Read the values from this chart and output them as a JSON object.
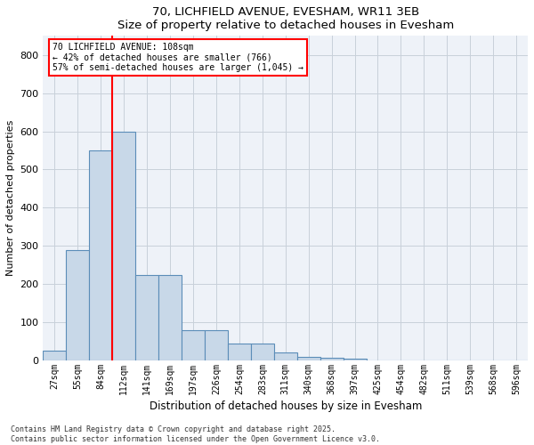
{
  "title": "70, LICHFIELD AVENUE, EVESHAM, WR11 3EB",
  "subtitle": "Size of property relative to detached houses in Evesham",
  "xlabel": "Distribution of detached houses by size in Evesham",
  "ylabel": "Number of detached properties",
  "categories": [
    "27sqm",
    "55sqm",
    "84sqm",
    "112sqm",
    "141sqm",
    "169sqm",
    "197sqm",
    "226sqm",
    "254sqm",
    "283sqm",
    "311sqm",
    "340sqm",
    "368sqm",
    "397sqm",
    "425sqm",
    "454sqm",
    "482sqm",
    "511sqm",
    "539sqm",
    "568sqm",
    "596sqm"
  ],
  "values": [
    25,
    290,
    550,
    600,
    225,
    225,
    80,
    80,
    45,
    45,
    22,
    10,
    7,
    4,
    0,
    0,
    0,
    0,
    0,
    0,
    0
  ],
  "bar_color": "#c8d8e8",
  "bar_edge_color": "#5b8db8",
  "grid_color": "#c8d0da",
  "background_color": "#eef2f8",
  "vline_color": "red",
  "annotation_line1": "70 LICHFIELD AVENUE: 108sqm",
  "annotation_line2": "← 42% of detached houses are smaller (766)",
  "annotation_line3": "57% of semi-detached houses are larger (1,045) →",
  "ylim": [
    0,
    850
  ],
  "yticks": [
    0,
    100,
    200,
    300,
    400,
    500,
    600,
    700,
    800
  ],
  "footnote1": "Contains HM Land Registry data © Crown copyright and database right 2025.",
  "footnote2": "Contains public sector information licensed under the Open Government Licence v3.0."
}
